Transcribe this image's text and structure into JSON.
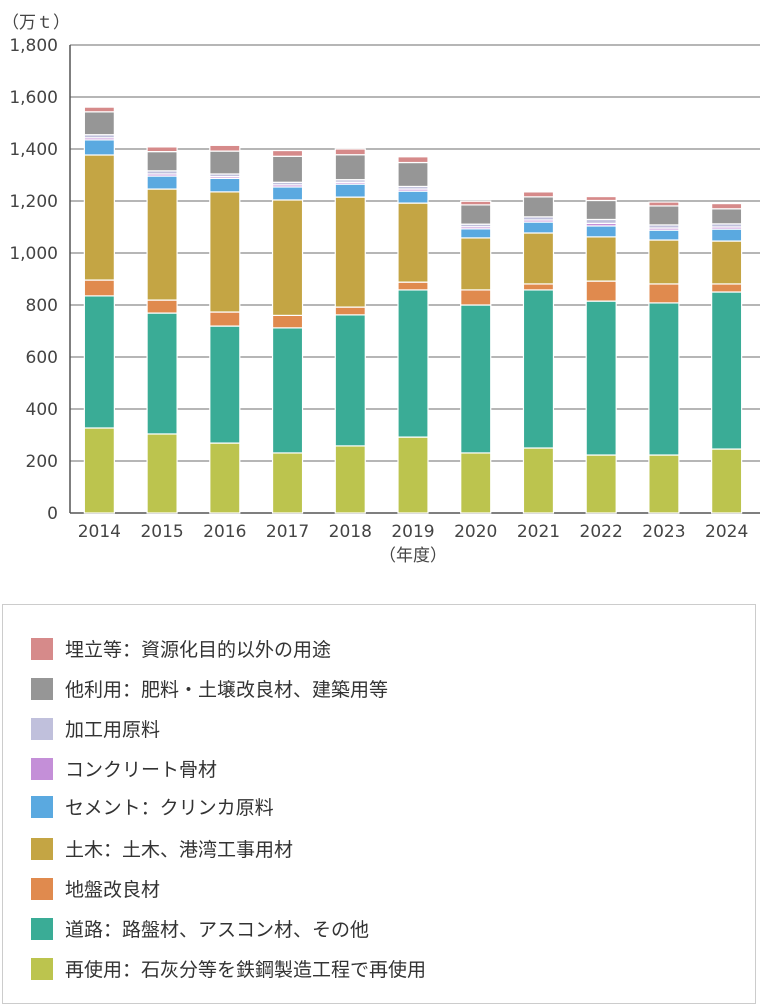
{
  "chart_data": {
    "type": "bar",
    "stacked": true,
    "unit_label": "（万ｔ）",
    "xlabel": "（年度）",
    "ylim": [
      0,
      1800
    ],
    "yticks": [
      "0",
      "200",
      "400",
      "600",
      "800",
      "1,000",
      "1,200",
      "1,400",
      "1,600",
      "1,800"
    ],
    "ytick_values": [
      0,
      200,
      400,
      600,
      800,
      1000,
      1200,
      1400,
      1600,
      1800
    ],
    "grid": true,
    "legend_position": "bottom",
    "categories": [
      "2014",
      "2015",
      "2016",
      "2017",
      "2018",
      "2019",
      "2020",
      "2021",
      "2022",
      "2023",
      "2024"
    ],
    "series": [
      {
        "name": "再使用：石灰分等を鉄鋼製造工程で再使用",
        "color": "#bcc44e",
        "values": [
          327,
          304,
          269,
          231,
          258,
          292,
          231,
          250,
          223,
          223,
          246
        ]
      },
      {
        "name": "道路：路盤材、アスコン材、その他",
        "color": "#3aac96",
        "values": [
          508,
          465,
          450,
          481,
          504,
          566,
          569,
          608,
          592,
          585,
          604
        ]
      },
      {
        "name": "地盤改良材",
        "color": "#e08a4e",
        "values": [
          61,
          50,
          54,
          48,
          30,
          30,
          58,
          23,
          77,
          73,
          31
        ]
      },
      {
        "name": "土木：土木、港湾工事用材",
        "color": "#c4a544",
        "values": [
          481,
          427,
          462,
          444,
          423,
          304,
          200,
          196,
          170,
          169,
          165
        ]
      },
      {
        "name": "セメント：クリンカ原料",
        "color": "#5aa9e0",
        "values": [
          58,
          50,
          52,
          50,
          50,
          46,
          35,
          42,
          42,
          38,
          46
        ]
      },
      {
        "name": "コンクリート骨材",
        "color": "#c48fd8",
        "values": [
          8,
          8,
          7,
          8,
          7,
          8,
          8,
          8,
          10,
          8,
          8
        ]
      },
      {
        "name": "加工用原料",
        "color": "#c0c0dc",
        "values": [
          12,
          12,
          10,
          10,
          10,
          10,
          10,
          12,
          15,
          12,
          12
        ]
      },
      {
        "name": "他利用：肥料・土壌改良材、建築用等",
        "color": "#969696",
        "values": [
          88,
          74,
          88,
          100,
          96,
          92,
          74,
          77,
          73,
          73,
          58
        ]
      },
      {
        "name": "埋立等：資源化目的以外の用途",
        "color": "#d68a8a",
        "values": [
          18,
          18,
          22,
          22,
          22,
          22,
          14,
          19,
          15,
          15,
          20
        ]
      }
    ]
  }
}
